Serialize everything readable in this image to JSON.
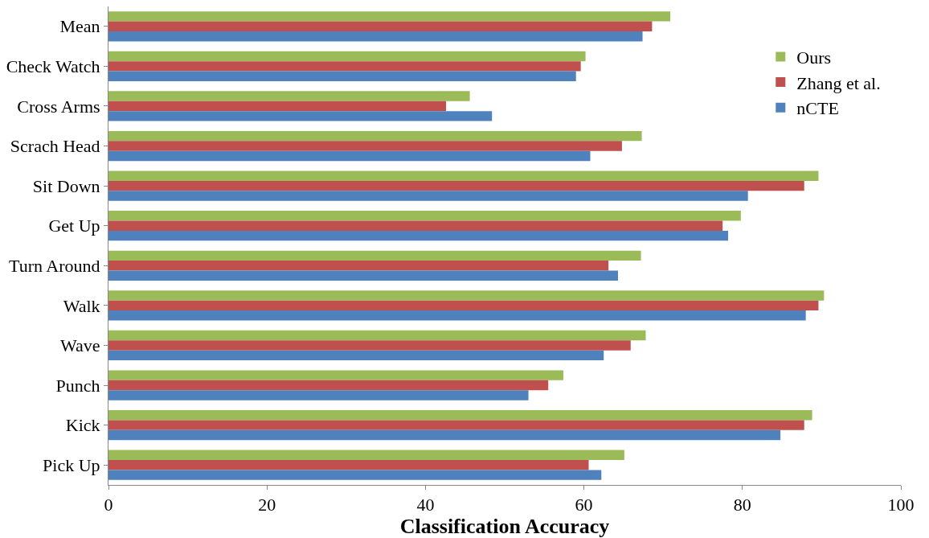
{
  "chart_data": {
    "type": "bar",
    "orientation": "horizontal",
    "xlabel": "Classification Accuracy",
    "categories": [
      "Mean",
      "Check Watch",
      "Cross Arms",
      "Scrach Head",
      "Sit Down",
      "Get Up",
      "Turn Around",
      "Walk",
      "Wave",
      "Punch",
      "Kick",
      "Pick Up"
    ],
    "series": [
      {
        "name": "Ours",
        "color": "#9bbb59",
        "values": [
          70.9,
          60.2,
          45.6,
          67.3,
          89.6,
          79.8,
          67.2,
          90.3,
          67.8,
          57.4,
          88.8,
          65.1
        ]
      },
      {
        "name": "Zhang et al.",
        "color": "#c0504d",
        "values": [
          68.6,
          59.6,
          42.6,
          64.8,
          87.8,
          77.5,
          63.1,
          89.6,
          65.9,
          55.5,
          87.8,
          60.6
        ]
      },
      {
        "name": "nCTE",
        "color": "#4f81bd",
        "values": [
          67.4,
          59.0,
          48.4,
          60.8,
          80.7,
          78.2,
          64.3,
          88.0,
          62.5,
          53.0,
          84.8,
          62.2
        ]
      }
    ],
    "xlim": [
      0,
      100
    ],
    "xticks": [
      0,
      20,
      40,
      60,
      80,
      100
    ],
    "legend": "top right"
  }
}
